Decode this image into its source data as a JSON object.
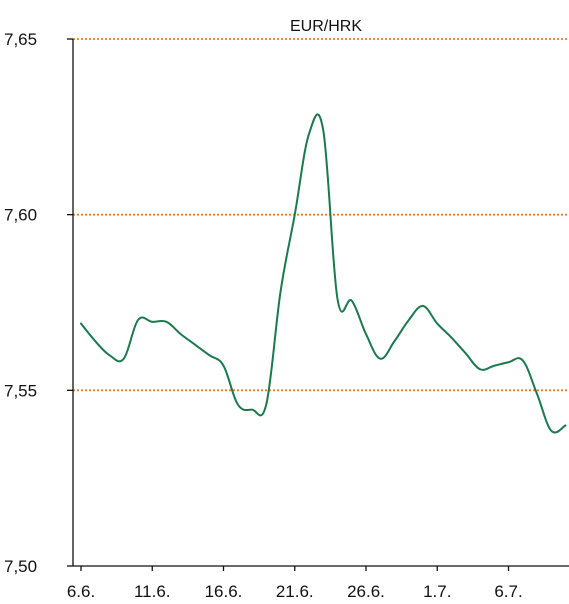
{
  "chart_data": {
    "type": "line",
    "title": "EUR/HRK",
    "xlabel": "",
    "ylabel": "",
    "x_tick_labels": [
      "6.6.",
      "11.6.",
      "16.6.",
      "21.6.",
      "26.6.",
      "1.7.",
      "6.7."
    ],
    "y_tick_labels": [
      "7,50",
      "7,55",
      "7,60",
      "7,65"
    ],
    "y_ticks": [
      7.5,
      7.55,
      7.6,
      7.65
    ],
    "ylim": [
      7.5,
      7.65
    ],
    "xlim": [
      "2013-06-06",
      "2013-07-08"
    ],
    "grid": {
      "horizontal": true,
      "style": "dotted",
      "color": "#e67e22",
      "levels": [
        7.55,
        7.6,
        7.65
      ]
    },
    "legend": "none",
    "series": [
      {
        "color": "#1a7a4e",
        "points": [
          {
            "x": "2013-06-06",
            "y": 7.569
          },
          {
            "x": "2013-06-07",
            "y": 7.564
          },
          {
            "x": "2013-06-08",
            "y": 7.56
          },
          {
            "x": "2013-06-09",
            "y": 7.559
          },
          {
            "x": "2013-06-10",
            "y": 7.57
          },
          {
            "x": "2013-06-11",
            "y": 7.5695
          },
          {
            "x": "2013-06-12",
            "y": 7.5695
          },
          {
            "x": "2013-06-13",
            "y": 7.566
          },
          {
            "x": "2013-06-14",
            "y": 7.563
          },
          {
            "x": "2013-06-15",
            "y": 7.56
          },
          {
            "x": "2013-06-16",
            "y": 7.557
          },
          {
            "x": "2013-06-17",
            "y": 7.546
          },
          {
            "x": "2013-06-18",
            "y": 7.5445
          },
          {
            "x": "2013-06-19",
            "y": 7.546
          },
          {
            "x": "2013-06-20",
            "y": 7.578
          },
          {
            "x": "2013-06-21",
            "y": 7.6
          },
          {
            "x": "2013-06-22",
            "y": 7.623
          },
          {
            "x": "2013-06-23",
            "y": 7.624
          },
          {
            "x": "2013-06-24",
            "y": 7.576
          },
          {
            "x": "2013-06-25",
            "y": 7.5755
          },
          {
            "x": "2013-06-26",
            "y": 7.566
          },
          {
            "x": "2013-06-27",
            "y": 7.559
          },
          {
            "x": "2013-06-28",
            "y": 7.564
          },
          {
            "x": "2013-06-29",
            "y": 7.57
          },
          {
            "x": "2013-06-30",
            "y": 7.574
          },
          {
            "x": "2013-07-01",
            "y": 7.569
          },
          {
            "x": "2013-07-02",
            "y": 7.565
          },
          {
            "x": "2013-07-03",
            "y": 7.5605
          },
          {
            "x": "2013-07-04",
            "y": 7.556
          },
          {
            "x": "2013-07-05",
            "y": 7.557
          },
          {
            "x": "2013-07-06",
            "y": 7.558
          },
          {
            "x": "2013-07-07",
            "y": 7.5585
          },
          {
            "x": "2013-07-08",
            "y": 7.549
          },
          {
            "x": "2013-07-09",
            "y": 7.5385
          },
          {
            "x": "2013-07-10",
            "y": 7.54
          }
        ]
      }
    ]
  }
}
